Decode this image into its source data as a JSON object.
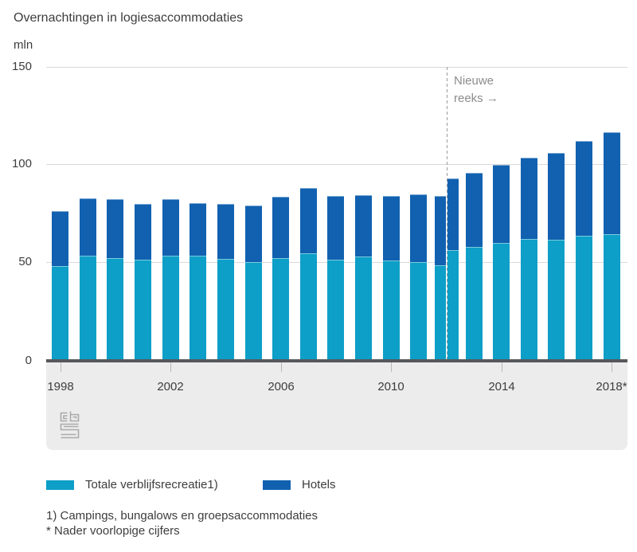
{
  "title": "Overnachtingen in logiesaccommodaties",
  "unit_label": "mln",
  "annotation": {
    "lines": [
      "Nieuwe",
      "reeks →"
    ]
  },
  "legend": [
    {
      "label": "Totale verblijfsrecreatie1)",
      "color": "#0d9fc7"
    },
    {
      "label": "Hotels",
      "color": "#1161b0"
    }
  ],
  "footnotes": [
    "1) Campings, bungalows en groepsaccommodaties",
    "* Nader voorlopige cijfers"
  ],
  "logo": "cbs-logo",
  "colors": {
    "recreatie": "#0d9fc7",
    "hotels": "#1161b0",
    "gridline": "#d9d9d9",
    "axis": "#56585b",
    "strip": "#ececec",
    "annotation_gray": "#8c8c8c",
    "text": "#3d3d3d"
  },
  "chart_data": {
    "type": "bar",
    "stacked": true,
    "title": "Overnachtingen in logiesaccommodaties",
    "xlabel": "",
    "ylabel": "mln",
    "ylim": [
      0,
      150
    ],
    "y_ticks": [
      0,
      50,
      100,
      150
    ],
    "grid": true,
    "legend_position": "bottom",
    "series_names": [
      "Totale verblijfsrecreatie1)",
      "Hotels"
    ],
    "x_tick_labels": [
      {
        "year": 1998,
        "label": "1998"
      },
      {
        "year": 2002,
        "label": "2002"
      },
      {
        "year": 2006,
        "label": "2006"
      },
      {
        "year": 2010,
        "label": "2010"
      },
      {
        "year": 2014,
        "label": "2014"
      },
      {
        "year": 2018,
        "label": "2018*"
      }
    ],
    "break_note": "Nieuwe reeks vanaf 2012 (oude en nieuwe reeks naast elkaar in 2012)",
    "bars": [
      {
        "year": 1998,
        "recreatie": 48,
        "hotels": 28
      },
      {
        "year": 1999,
        "recreatie": 53,
        "hotels": 29.5
      },
      {
        "year": 2000,
        "recreatie": 52,
        "hotels": 30
      },
      {
        "year": 2001,
        "recreatie": 51,
        "hotels": 28.5
      },
      {
        "year": 2002,
        "recreatie": 53,
        "hotels": 29
      },
      {
        "year": 2003,
        "recreatie": 53,
        "hotels": 27
      },
      {
        "year": 2004,
        "recreatie": 51.5,
        "hotels": 28
      },
      {
        "year": 2005,
        "recreatie": 49.5,
        "hotels": 29
      },
      {
        "year": 2006,
        "recreatie": 51.5,
        "hotels": 31.5
      },
      {
        "year": 2007,
        "recreatie": 54,
        "hotels": 33.5
      },
      {
        "year": 2008,
        "recreatie": 51,
        "hotels": 32.5
      },
      {
        "year": 2009,
        "recreatie": 52.5,
        "hotels": 31.5
      },
      {
        "year": 2010,
        "recreatie": 50.5,
        "hotels": 33
      },
      {
        "year": 2011,
        "recreatie": 50,
        "hotels": 34.5
      },
      {
        "year": 2012,
        "series": "oude reeks",
        "recreatie": 48,
        "hotels": 35.5,
        "narrow": true,
        "dx": -7
      },
      {
        "year": 2012,
        "series": "nieuwe reeks",
        "recreatie": 56,
        "hotels": 36.5,
        "narrow": true,
        "dx": 9
      },
      {
        "year": 2013,
        "recreatie": 57.5,
        "hotels": 38
      },
      {
        "year": 2014,
        "recreatie": 59.5,
        "hotels": 40
      },
      {
        "year": 2015,
        "recreatie": 61.5,
        "hotels": 41.5
      },
      {
        "year": 2016,
        "recreatie": 61,
        "hotels": 44.5
      },
      {
        "year": 2017,
        "recreatie": 63,
        "hotels": 48.5
      },
      {
        "year": 2018,
        "recreatie": 64,
        "hotels": 52
      }
    ]
  }
}
